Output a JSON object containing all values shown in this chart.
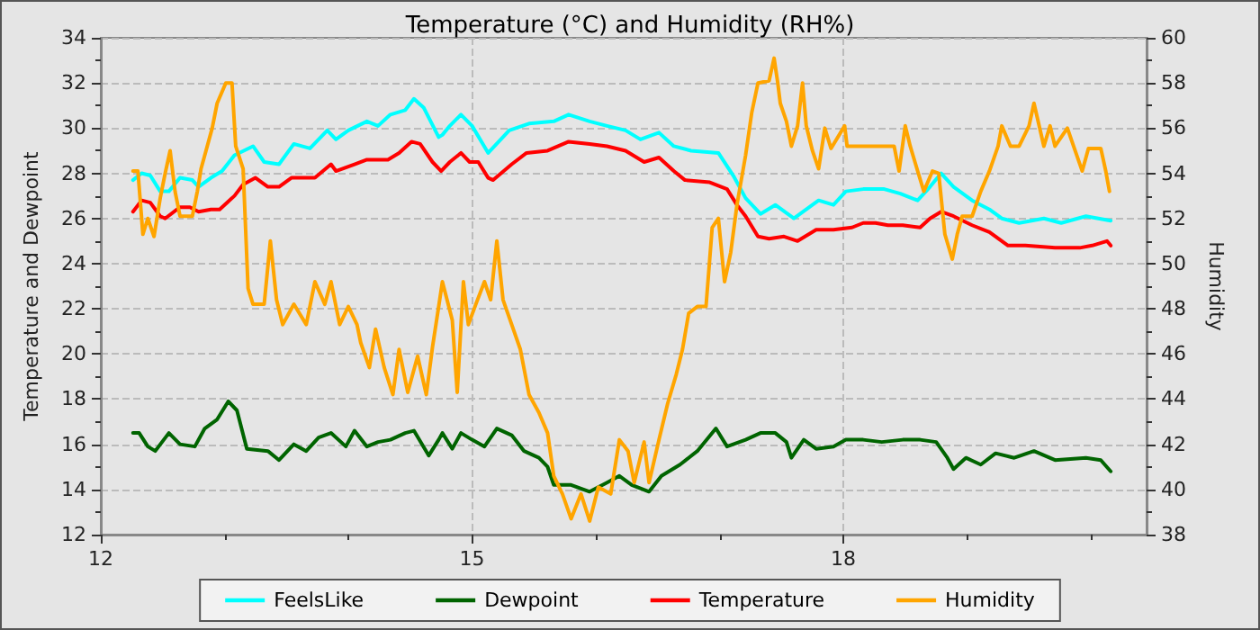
{
  "chart_data": {
    "type": "line",
    "title": "Temperature (°C) and Humidity (RH%)",
    "ylabel": "Temperature and Dewpoint",
    "y2label": "Humidity",
    "xlim": [
      12,
      20.45
    ],
    "xticks": [
      12,
      {
        "value": 13,
        "label": null
      },
      {
        "value": 14,
        "label": null
      },
      15,
      {
        "value": 16,
        "label": null
      },
      {
        "value": 17,
        "label": null
      },
      18,
      {
        "value": 19,
        "label": null
      },
      {
        "value": 20,
        "label": null
      }
    ],
    "ylim": [
      12,
      34
    ],
    "yticks": [
      12,
      {
        "value": 13,
        "label": null
      },
      14,
      {
        "value": 15,
        "label": null
      },
      16,
      {
        "value": 17,
        "label": null
      },
      18,
      {
        "value": 19,
        "label": null
      },
      20,
      {
        "value": 21,
        "label": null
      },
      22,
      {
        "value": 23,
        "label": null
      },
      24,
      {
        "value": 25,
        "label": null
      },
      26,
      {
        "value": 27,
        "label": null
      },
      28,
      {
        "value": 29,
        "label": null
      },
      30,
      {
        "value": 31,
        "label": null
      },
      32,
      {
        "value": 33,
        "label": null
      },
      34
    ],
    "y2lim": [
      38,
      60
    ],
    "y2ticks": [
      38,
      {
        "value": 39,
        "label": null
      },
      40,
      {
        "value": 41,
        "label": null
      },
      42,
      {
        "value": 43,
        "label": null
      },
      44,
      {
        "value": 45,
        "label": null
      },
      46,
      {
        "value": 47,
        "label": null
      },
      48,
      {
        "value": 49,
        "label": null
      },
      50,
      {
        "value": 51,
        "label": null
      },
      52,
      {
        "value": 53,
        "label": null
      },
      54,
      {
        "value": 55,
        "label": null
      },
      56,
      {
        "value": 57,
        "label": null
      },
      58,
      {
        "value": 59,
        "label": null
      },
      60
    ],
    "grid": true,
    "legend": "bottom",
    "marker": "none",
    "line_style": "solid",
    "series": [
      {
        "name": "FeelsLike",
        "color": "#00ffff",
        "x": [
          12.26,
          12.33,
          12.4,
          12.48,
          12.55,
          12.64,
          12.74,
          12.79,
          12.89,
          12.98,
          13.08,
          13.23,
          13.32,
          13.44,
          13.56,
          13.69,
          13.83,
          13.9,
          14.0,
          14.15,
          14.24,
          14.34,
          14.46,
          14.53,
          14.61,
          14.73,
          14.76,
          14.82,
          14.91,
          15.0,
          15.13,
          15.3,
          15.46,
          15.66,
          15.78,
          15.95,
          16.09,
          16.24,
          16.36,
          16.51,
          16.63,
          16.77,
          16.99,
          17.11,
          17.21,
          17.33,
          17.45,
          17.6,
          17.8,
          17.92,
          18.02,
          18.16,
          18.33,
          18.46,
          18.6,
          18.7,
          18.79,
          18.89,
          19.04,
          19.18,
          19.28,
          19.42,
          19.62,
          19.76,
          19.96,
          20.16
        ],
        "values": [
          27.7,
          28.0,
          27.9,
          27.2,
          27.2,
          27.8,
          27.7,
          27.4,
          27.8,
          28.1,
          28.8,
          29.2,
          28.5,
          28.4,
          29.3,
          29.1,
          29.9,
          29.5,
          29.9,
          30.3,
          30.1,
          30.6,
          30.8,
          31.3,
          30.9,
          29.6,
          29.7,
          30.1,
          30.6,
          30.1,
          28.9,
          29.9,
          30.2,
          30.3,
          30.6,
          30.3,
          30.1,
          29.9,
          29.5,
          29.8,
          29.2,
          29.0,
          28.9,
          27.9,
          26.9,
          26.2,
          26.6,
          26.0,
          26.8,
          26.6,
          27.2,
          27.3,
          27.3,
          27.1,
          26.8,
          27.4,
          28.0,
          27.4,
          26.8,
          26.4,
          26.0,
          25.8,
          26.0,
          25.8,
          26.1,
          25.9
        ]
      },
      {
        "name": "Dewpoint",
        "color": "#006400",
        "x": [
          12.26,
          12.31,
          12.38,
          12.44,
          12.55,
          12.64,
          12.76,
          12.84,
          12.94,
          13.03,
          13.1,
          13.18,
          13.35,
          13.44,
          13.56,
          13.66,
          13.76,
          13.86,
          13.98,
          14.05,
          14.15,
          14.24,
          14.34,
          14.46,
          14.53,
          14.65,
          14.73,
          14.76,
          14.84,
          14.91,
          15.0,
          15.1,
          15.2,
          15.32,
          15.42,
          15.54,
          15.61,
          15.66,
          15.8,
          15.95,
          16.09,
          16.19,
          16.29,
          16.43,
          16.53,
          16.68,
          16.82,
          16.97,
          17.06,
          17.21,
          17.33,
          17.45,
          17.54,
          17.58,
          17.68,
          17.78,
          17.92,
          18.02,
          18.16,
          18.31,
          18.48,
          18.62,
          18.75,
          18.84,
          18.89,
          18.99,
          19.11,
          19.23,
          19.38,
          19.54,
          19.71,
          19.96,
          20.08,
          20.16
        ],
        "values": [
          16.5,
          16.5,
          15.9,
          15.7,
          16.5,
          16.0,
          15.9,
          16.7,
          17.1,
          17.9,
          17.5,
          15.8,
          15.7,
          15.3,
          16.0,
          15.7,
          16.3,
          16.5,
          15.9,
          16.6,
          15.9,
          16.1,
          16.2,
          16.5,
          16.6,
          15.5,
          16.2,
          16.5,
          15.8,
          16.5,
          16.2,
          15.9,
          16.7,
          16.4,
          15.7,
          15.4,
          15.0,
          14.2,
          14.2,
          13.9,
          14.3,
          14.6,
          14.2,
          13.9,
          14.6,
          15.1,
          15.7,
          16.7,
          15.9,
          16.2,
          16.5,
          16.5,
          16.1,
          15.4,
          16.2,
          15.8,
          15.9,
          16.2,
          16.2,
          16.1,
          16.2,
          16.2,
          16.1,
          15.4,
          14.9,
          15.4,
          15.1,
          15.6,
          15.4,
          15.7,
          15.3,
          15.4,
          15.3,
          14.8
        ]
      },
      {
        "name": "Temperature",
        "color": "#ff0000",
        "x": [
          12.26,
          12.33,
          12.4,
          12.48,
          12.52,
          12.64,
          12.72,
          12.79,
          12.89,
          12.96,
          13.08,
          13.15,
          13.25,
          13.35,
          13.44,
          13.54,
          13.73,
          13.86,
          13.9,
          14.05,
          14.15,
          14.19,
          14.32,
          14.41,
          14.51,
          14.58,
          14.68,
          14.75,
          14.82,
          14.91,
          14.98,
          15.05,
          15.13,
          15.17,
          15.32,
          15.44,
          15.61,
          15.78,
          15.95,
          16.09,
          16.24,
          16.39,
          16.51,
          16.63,
          16.72,
          16.92,
          17.06,
          17.14,
          17.21,
          17.31,
          17.4,
          17.52,
          17.63,
          17.78,
          17.92,
          18.07,
          18.16,
          18.26,
          18.36,
          18.48,
          18.62,
          18.7,
          18.79,
          18.89,
          19.04,
          19.18,
          19.33,
          19.47,
          19.71,
          19.91,
          20.01,
          20.13,
          20.16
        ],
        "values": [
          26.3,
          26.8,
          26.7,
          26.1,
          26.0,
          26.5,
          26.5,
          26.3,
          26.4,
          26.4,
          27.0,
          27.5,
          27.8,
          27.4,
          27.4,
          27.8,
          27.8,
          28.4,
          28.1,
          28.4,
          28.6,
          28.6,
          28.6,
          28.9,
          29.4,
          29.3,
          28.5,
          28.1,
          28.5,
          28.9,
          28.5,
          28.5,
          27.8,
          27.7,
          28.4,
          28.9,
          29.0,
          29.4,
          29.3,
          29.2,
          29.0,
          28.5,
          28.7,
          28.1,
          27.7,
          27.6,
          27.3,
          26.6,
          26.1,
          25.2,
          25.1,
          25.2,
          25.0,
          25.5,
          25.5,
          25.6,
          25.8,
          25.8,
          25.7,
          25.7,
          25.6,
          26.0,
          26.3,
          26.1,
          25.7,
          25.4,
          24.8,
          24.8,
          24.7,
          24.7,
          24.8,
          25.0,
          24.8
        ]
      },
      {
        "name": "Humidity",
        "color": "#ffa500",
        "axis": "y2",
        "x": [
          12.26,
          12.3,
          12.34,
          12.38,
          12.43,
          12.48,
          12.52,
          12.56,
          12.6,
          12.64,
          12.74,
          12.78,
          12.81,
          12.85,
          12.9,
          12.94,
          13.01,
          13.06,
          13.09,
          13.15,
          13.19,
          13.23,
          13.32,
          13.37,
          13.42,
          13.47,
          13.56,
          13.66,
          13.73,
          13.81,
          13.86,
          13.93,
          14.0,
          14.07,
          14.1,
          14.17,
          14.22,
          14.29,
          14.36,
          14.41,
          14.48,
          14.56,
          14.63,
          14.68,
          14.73,
          14.76,
          14.84,
          14.88,
          14.93,
          14.97,
          15.03,
          15.1,
          15.15,
          15.2,
          15.25,
          15.32,
          15.39,
          15.46,
          15.54,
          15.61,
          15.66,
          15.73,
          15.8,
          15.88,
          15.95,
          16.02,
          16.12,
          16.19,
          16.26,
          16.31,
          16.39,
          16.43,
          16.51,
          16.58,
          16.65,
          16.7,
          16.75,
          16.82,
          16.89,
          16.94,
          16.99,
          17.04,
          17.09,
          17.14,
          17.21,
          17.26,
          17.31,
          17.4,
          17.44,
          17.47,
          17.49,
          17.54,
          17.58,
          17.63,
          17.67,
          17.7,
          17.75,
          17.8,
          17.85,
          17.9,
          18.01,
          18.03,
          18.21,
          18.41,
          18.45,
          18.5,
          18.54,
          18.6,
          18.65,
          18.72,
          18.77,
          18.82,
          18.88,
          18.92,
          18.96,
          19.04,
          19.11,
          19.18,
          19.25,
          19.28,
          19.35,
          19.42,
          19.5,
          19.54,
          19.62,
          19.67,
          19.71,
          19.81,
          19.86,
          19.93,
          19.98,
          20.08,
          20.12,
          20.15
        ],
        "values": [
          54.1,
          54.1,
          51.3,
          52.0,
          51.2,
          52.9,
          54.0,
          55.0,
          53.2,
          52.1,
          52.1,
          53.2,
          54.2,
          55.0,
          56.0,
          57.1,
          58.0,
          58.0,
          55.2,
          54.2,
          48.9,
          48.2,
          48.2,
          51.0,
          48.4,
          47.3,
          48.2,
          47.3,
          49.2,
          48.2,
          49.2,
          47.3,
          48.1,
          47.3,
          46.5,
          45.4,
          47.1,
          45.4,
          44.2,
          46.2,
          44.3,
          45.9,
          44.2,
          46.3,
          48.1,
          49.2,
          47.5,
          44.3,
          49.2,
          47.3,
          48.2,
          49.2,
          48.4,
          51.0,
          48.4,
          47.3,
          46.2,
          44.2,
          43.4,
          42.5,
          40.6,
          39.8,
          38.7,
          39.8,
          38.6,
          40.1,
          39.8,
          42.2,
          41.7,
          40.3,
          42.1,
          40.3,
          42.2,
          43.8,
          45.1,
          46.2,
          47.8,
          48.1,
          48.1,
          51.6,
          52.0,
          49.2,
          50.5,
          52.6,
          54.8,
          56.7,
          58.0,
          58.1,
          59.1,
          58.0,
          57.1,
          56.3,
          55.2,
          56.1,
          58.0,
          56.1,
          55.0,
          54.2,
          56.0,
          55.1,
          56.1,
          55.2,
          55.2,
          55.2,
          54.1,
          56.1,
          55.2,
          54.1,
          53.2,
          54.1,
          54.0,
          51.3,
          50.2,
          51.3,
          52.1,
          52.1,
          53.2,
          54.1,
          55.2,
          56.1,
          55.2,
          55.2,
          56.1,
          57.1,
          55.2,
          56.1,
          55.2,
          56.0,
          55.2,
          54.1,
          55.1,
          55.1,
          54.1,
          53.2
        ]
      }
    ]
  }
}
